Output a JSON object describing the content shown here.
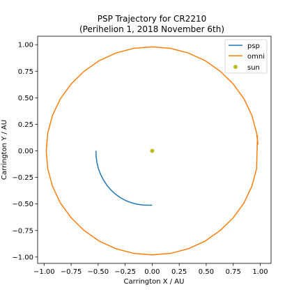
{
  "chart_data": {
    "type": "line",
    "title": "PSP Trajectory for CR2210",
    "subtitle": "(Perihelion 1, 2018 November 6th)",
    "xlabel": "Carrington X / AU",
    "ylabel": "Carrington Y / AU",
    "xlim": [
      -1.06,
      1.1
    ],
    "ylim": [
      -1.06,
      1.08
    ],
    "xticks": [
      -1.0,
      -0.75,
      -0.5,
      -0.25,
      0.0,
      0.25,
      0.5,
      0.75,
      1.0
    ],
    "xtick_labels": [
      "−1.00",
      "−0.75",
      "−0.50",
      "−0.25",
      "0.00",
      "0.25",
      "0.50",
      "0.75",
      "1.00"
    ],
    "yticks": [
      -1.0,
      -0.75,
      -0.5,
      -0.25,
      0.0,
      0.25,
      0.5,
      0.75,
      1.0
    ],
    "ytick_labels": [
      "−1.00",
      "−0.75",
      "−0.50",
      "−0.25",
      "0.00",
      "0.25",
      "0.50",
      "0.75",
      "1.00"
    ],
    "grid": false,
    "legend_position": "top-right",
    "series": [
      {
        "name": "psp",
        "color": "#1f77b4",
        "x": [
          -0.52,
          -0.518,
          -0.51,
          -0.496,
          -0.475,
          -0.449,
          -0.418,
          -0.382,
          -0.342,
          -0.297,
          -0.249,
          -0.197,
          -0.143,
          -0.086,
          -0.029,
          0.0
        ],
        "y": [
          0.0,
          -0.058,
          -0.116,
          -0.172,
          -0.226,
          -0.277,
          -0.325,
          -0.368,
          -0.406,
          -0.439,
          -0.466,
          -0.487,
          -0.502,
          -0.51,
          -0.512,
          -0.512
        ]
      },
      {
        "name": "omni",
        "color": "#ff7f0e",
        "x": [
          0.98,
          0.966,
          0.922,
          0.85,
          0.75,
          0.63,
          0.49,
          0.335,
          0.17,
          0.0,
          -0.17,
          -0.335,
          -0.49,
          -0.63,
          -0.75,
          -0.85,
          -0.922,
          -0.966,
          -0.98,
          -0.966,
          -0.922,
          -0.85,
          -0.75,
          -0.63,
          -0.49,
          -0.335,
          -0.17,
          0.0,
          0.17,
          0.335,
          0.49,
          0.63,
          0.75,
          0.85,
          0.922,
          0.966,
          0.975
        ],
        "y": [
          0.06,
          0.17,
          0.335,
          0.49,
          0.63,
          0.75,
          0.85,
          0.922,
          0.966,
          0.98,
          0.966,
          0.922,
          0.85,
          0.75,
          0.63,
          0.49,
          0.335,
          0.17,
          0.0,
          -0.17,
          -0.335,
          -0.49,
          -0.63,
          -0.75,
          -0.85,
          -0.922,
          -0.966,
          -0.98,
          -0.966,
          -0.922,
          -0.85,
          -0.75,
          -0.63,
          -0.49,
          -0.335,
          -0.17,
          0.15
        ]
      }
    ],
    "points": [
      {
        "name": "sun",
        "color": "#bcbd22",
        "x": 0.0,
        "y": 0.0
      }
    ]
  }
}
